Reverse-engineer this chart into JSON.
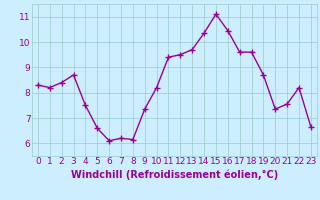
{
  "x": [
    0,
    1,
    2,
    3,
    4,
    5,
    6,
    7,
    8,
    9,
    10,
    11,
    12,
    13,
    14,
    15,
    16,
    17,
    18,
    19,
    20,
    21,
    22,
    23
  ],
  "y": [
    8.3,
    8.2,
    8.4,
    8.7,
    7.5,
    6.6,
    6.1,
    6.2,
    6.15,
    7.35,
    8.2,
    9.4,
    9.5,
    9.7,
    10.35,
    11.1,
    10.45,
    9.6,
    9.6,
    8.7,
    7.35,
    7.55,
    8.2,
    6.65
  ],
  "line_color": "#990099",
  "marker": "+",
  "marker_size": 4,
  "linewidth": 1.0,
  "background_color": "#cceeff",
  "grid_color": "#99cccc",
  "xlabel": "Windchill (Refroidissement éolien,°C)",
  "xlabel_color": "#990099",
  "xlabel_fontsize": 7,
  "tick_color": "#990099",
  "tick_fontsize": 6.5,
  "ylim": [
    5.5,
    11.5
  ],
  "xlim": [
    -0.5,
    23.5
  ],
  "yticks": [
    6,
    7,
    8,
    9,
    10,
    11
  ],
  "xticks": [
    0,
    1,
    2,
    3,
    4,
    5,
    6,
    7,
    8,
    9,
    10,
    11,
    12,
    13,
    14,
    15,
    16,
    17,
    18,
    19,
    20,
    21,
    22,
    23
  ]
}
